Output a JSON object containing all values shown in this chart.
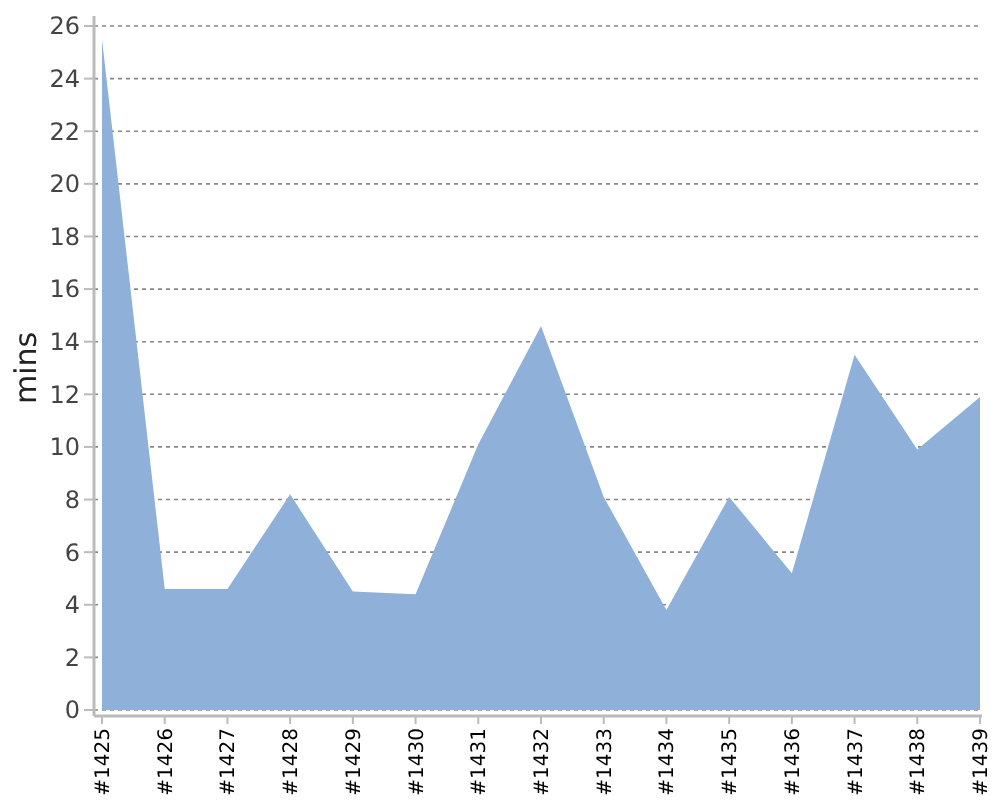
{
  "chart_data": {
    "type": "area",
    "ylabel": "mins",
    "categories": [
      "#1425",
      "#1426",
      "#1427",
      "#1428",
      "#1429",
      "#1430",
      "#1431",
      "#1432",
      "#1433",
      "#1434",
      "#1435",
      "#1436",
      "#1437",
      "#1438",
      "#1439"
    ],
    "series": [
      {
        "color": "#8fb0d9",
        "values": [
          25.5,
          4.6,
          4.6,
          8.2,
          4.5,
          4.4,
          10.1,
          14.6,
          8.1,
          3.8,
          8.1,
          5.2,
          13.5,
          9.9,
          11.9
        ]
      }
    ],
    "ylim": [
      0,
      26
    ],
    "yticks": [
      0,
      2,
      4,
      6,
      8,
      10,
      12,
      14,
      16,
      18,
      20,
      22,
      24,
      26
    ],
    "grid": "y"
  }
}
